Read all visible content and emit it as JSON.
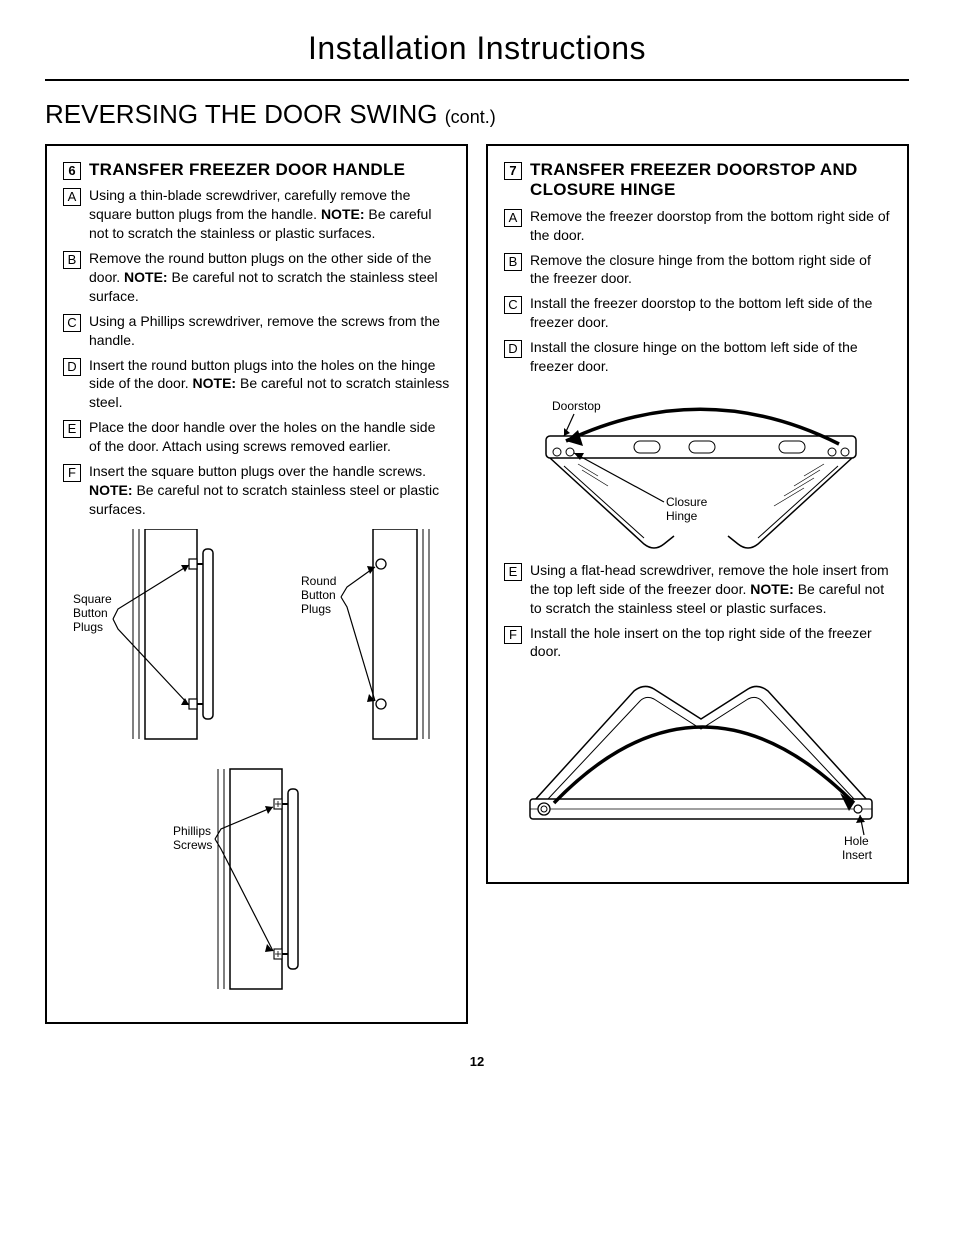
{
  "page_title": "Installation Instructions",
  "section_title_main": "REVERSING THE DOOR SWING",
  "section_title_cont": "(cont.)",
  "page_number": "12",
  "left": {
    "num": "6",
    "title": "TRANSFER FREEZER DOOR HANDLE",
    "steps": [
      {
        "l": "A",
        "pre": "Using a thin-blade screwdriver, carefully remove the square button plugs from the handle. ",
        "note": "NOTE:",
        "post": " Be careful not to scratch the stainless or plastic surfaces."
      },
      {
        "l": "B",
        "pre": "Remove the round button plugs on the other side of the door. ",
        "note": "NOTE:",
        "post": " Be careful not to scratch the stainless steel surface."
      },
      {
        "l": "C",
        "pre": "Using a Phillips screwdriver, remove the screws from the handle.",
        "note": "",
        "post": ""
      },
      {
        "l": "D",
        "pre": "Insert the round button plugs into the holes on the hinge side of the door. ",
        "note": "NOTE:",
        "post": " Be careful not to scratch stainless steel."
      },
      {
        "l": "E",
        "pre": "Place the door handle over the holes on the handle side of the door. Attach using screws removed earlier.",
        "note": "",
        "post": ""
      },
      {
        "l": "F",
        "pre": "Insert the square button plugs over the handle screws. ",
        "note": "NOTE:",
        "post": " Be careful not to scratch stainless steel or plastic surfaces."
      }
    ],
    "labels": {
      "square_plugs_1": "Square",
      "square_plugs_2": "Button",
      "square_plugs_3": "Plugs",
      "round_plugs_1": "Round",
      "round_plugs_2": "Button",
      "round_plugs_3": "Plugs",
      "phillips_1": "Phillips",
      "phillips_2": "Screws"
    }
  },
  "right": {
    "num": "7",
    "title": "TRANSFER FREEZER DOORSTOP AND CLOSURE HINGE",
    "steps_top": [
      {
        "l": "A",
        "pre": "Remove the freezer doorstop from the bottom right side of the door.",
        "note": "",
        "post": ""
      },
      {
        "l": "B",
        "pre": "Remove the closure hinge from the bottom right side of the freezer door.",
        "note": "",
        "post": ""
      },
      {
        "l": "C",
        "pre": "Install the freezer doorstop to the bottom left side of the freezer door.",
        "note": "",
        "post": ""
      },
      {
        "l": "D",
        "pre": "Install the closure hinge on the bottom left side of the freezer door.",
        "note": "",
        "post": ""
      }
    ],
    "labels_top": {
      "doorstop": "Doorstop",
      "closure_1": "Closure",
      "closure_2": "Hinge"
    },
    "steps_bottom": [
      {
        "l": "E",
        "pre": "Using a flat-head screwdriver, remove the hole insert from the top left side of the freezer door. ",
        "note": "NOTE:",
        "post": " Be careful not to scratch the stainless steel or plastic surfaces."
      },
      {
        "l": "F",
        "pre": "Install the hole insert on the top right side of the freezer door.",
        "note": "",
        "post": ""
      }
    ],
    "labels_bottom": {
      "hole_1": "Hole",
      "hole_2": "Insert"
    }
  }
}
